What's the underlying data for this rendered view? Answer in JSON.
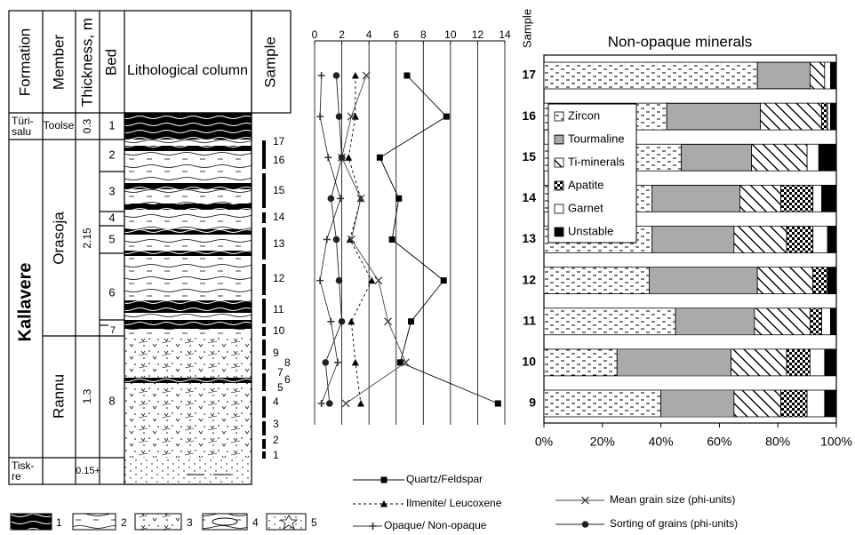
{
  "stratigraphy": {
    "headers": [
      "Formation",
      "Member",
      "Thickness, m",
      "Bed",
      "Lithological column",
      "Sample"
    ],
    "formations": [
      "Türi-salu",
      "Kallavere",
      "Tisk-re"
    ],
    "members": [
      "Toolse",
      "Orasoja",
      "Rannu"
    ],
    "thicknesses": [
      "0.3",
      "2.15",
      "1.3",
      "0.15+"
    ],
    "beds": [
      "1",
      "2",
      "3",
      "4",
      "5",
      "6",
      "7",
      "8"
    ],
    "samples": [
      "17",
      "16",
      "15",
      "14",
      "13",
      "12",
      "11",
      "10",
      "9",
      "8",
      "7",
      "6",
      "5",
      "4",
      "3",
      "2",
      "1"
    ],
    "legend": [
      "1",
      "2",
      "3",
      "4",
      "5"
    ]
  },
  "chart_data": [
    {
      "type": "line",
      "xlim": [
        0,
        14
      ],
      "xticks": [
        0,
        2,
        4,
        6,
        8,
        10,
        12,
        14
      ],
      "grid": true,
      "series": [
        {
          "name": "Quartz/Feldspar",
          "color": "#000000",
          "marker": "square",
          "dash": "solid",
          "values": [
            6.8,
            9.7,
            4.8,
            6.2,
            5.7,
            9.5,
            7.1,
            6.3,
            13.5
          ]
        },
        {
          "name": "Ilmenite/ Leucoxene",
          "color": "#000000",
          "marker": "triangle",
          "dash": "dashed",
          "values": [
            3.0,
            3.0,
            2.5,
            3.4,
            2.6,
            4.2,
            2.7,
            3.0,
            3.4
          ]
        },
        {
          "name": "Opaque/ Non-opaque",
          "color": "#333333",
          "marker": "plus",
          "dash": "solid",
          "values": [
            0.5,
            0.4,
            1.0,
            1.9,
            0.9,
            0.4,
            1.2,
            1.7,
            0.5
          ]
        },
        {
          "name": "Mean grain size (phi-units)",
          "color": "#444444",
          "marker": "cross",
          "dash": "solid",
          "values": [
            3.8,
            2.7,
            2.0,
            3.4,
            2.7,
            4.7,
            5.4,
            6.7,
            2.3
          ]
        },
        {
          "name": "Sorting of grains (phi-units)",
          "color": "#222222",
          "marker": "circle",
          "dash": "solid",
          "values": [
            1.6,
            1.8,
            2.0,
            1.2,
            1.6,
            1.8,
            2.0,
            0.8,
            1.1
          ]
        }
      ]
    },
    {
      "type": "bar",
      "orientation": "horizontal",
      "stacked": true,
      "title": "Non-opaque minerals",
      "ylabel": "Sample",
      "categories": [
        "17",
        "16",
        "15",
        "14",
        "13",
        "12",
        "11",
        "10",
        "9"
      ],
      "xlim": [
        0,
        100
      ],
      "xticks": [
        {
          "value": 0,
          "label": "0%"
        },
        {
          "value": 20,
          "label": "20%"
        },
        {
          "value": 40,
          "label": "40%"
        },
        {
          "value": 60,
          "label": "60%"
        },
        {
          "value": 80,
          "label": "80%"
        },
        {
          "value": 100,
          "label": "100%"
        }
      ],
      "legend": "upper-left",
      "series": [
        {
          "name": "Zircon",
          "color": "#000000",
          "pattern": "dashes",
          "values": [
            73,
            42,
            47,
            37,
            37,
            36,
            45,
            25,
            40
          ]
        },
        {
          "name": "Tourmaline",
          "color": "#555555",
          "pattern": "lines",
          "values": [
            18,
            32,
            24,
            30,
            28,
            37,
            27,
            39,
            25
          ]
        },
        {
          "name": "Ti-minerals",
          "color": "#000000",
          "pattern": "diagonal",
          "values": [
            5,
            21,
            19,
            14,
            18,
            19,
            19,
            19,
            16
          ]
        },
        {
          "name": "Apatite",
          "color": "#000000",
          "pattern": "checks",
          "values": [
            0,
            2,
            0,
            11,
            9,
            5,
            4,
            8,
            9
          ]
        },
        {
          "name": "Garnet",
          "color": "#ffffff",
          "pattern": "solid",
          "values": [
            2,
            1,
            4,
            3,
            5,
            0,
            3,
            5,
            6
          ]
        },
        {
          "name": "Unstable",
          "color": "#000000",
          "pattern": "solid",
          "values": [
            2,
            2,
            6,
            5,
            3,
            3,
            2,
            4,
            4
          ]
        }
      ]
    }
  ]
}
